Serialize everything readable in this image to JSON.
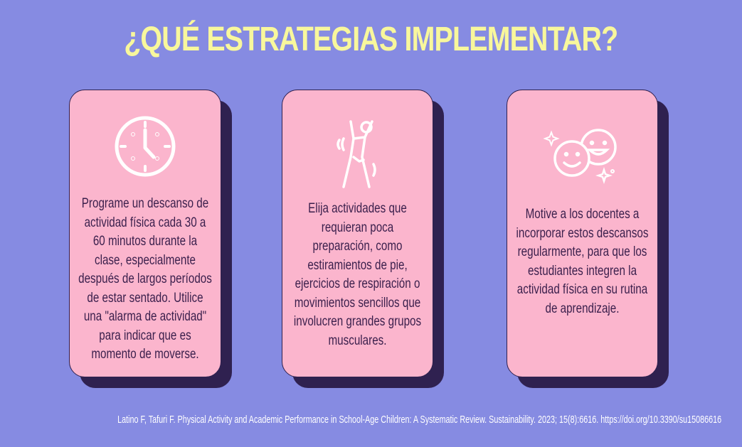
{
  "title": "¿QUÉ ESTRATEGIAS IMPLEMENTAR?",
  "colors": {
    "background": "#868be2",
    "title": "#f8f79c",
    "card": "#fbb5cd",
    "shadow": "#2f2150",
    "text": "#3a1f4c"
  },
  "cards": [
    {
      "icon": "clock-icon",
      "lines": [
        "Programe un descanso de",
        "actividad física cada 30 a",
        "60 minutos durante la",
        "clase, especialmente",
        "después de largos períodos",
        "de estar sentado. Utilice",
        "una \"alarma de actividad\"",
        "para indicar que es",
        "momento de moverse."
      ]
    },
    {
      "icon": "stretching-person-icon",
      "lines": [
        "Elija actividades que",
        "requieran poca",
        "preparación, como",
        "estiramientos de pie,",
        "ejercicios de respiración o",
        "movimientos sencillos que",
        "involucren grandes grupos",
        "musculares."
      ]
    },
    {
      "icon": "smiling-faces-icon",
      "lines": [
        "Motive a los docentes a",
        "incorporar estos descansos",
        "regularmente, para que los",
        "estudiantes integren la",
        "actividad física en su rutina",
        "de aprendizaje."
      ]
    }
  ],
  "citation": "Latino F, Tafuri F. Physical Activity and Academic Performance in School-Age Children: A Systematic Review. Sustainability. 2023; 15(8):6616. https://doi.org/10.3390/su15086616"
}
